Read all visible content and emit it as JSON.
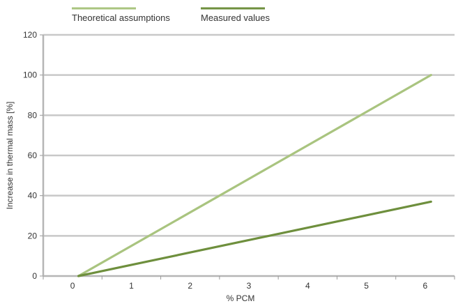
{
  "chart_data": {
    "type": "line",
    "xlabel": "% PCM",
    "ylabel": "Increase in thermal mass [%]",
    "xlim": [
      -0.5,
      6.5
    ],
    "ylim": [
      0,
      120
    ],
    "x_ticks": [
      0,
      1,
      2,
      3,
      4,
      5,
      6
    ],
    "y_ticks": [
      0,
      20,
      40,
      60,
      80,
      100,
      120
    ],
    "grid": "horizontal",
    "legend_position": "top",
    "series": [
      {
        "name": "Theoretical assumptions",
        "color": "#a9c47f",
        "x": [
          0.1,
          6.1
        ],
        "y": [
          0,
          100
        ]
      },
      {
        "name": "Measured values",
        "color": "#6e8f3d",
        "x": [
          0.1,
          6.1
        ],
        "y": [
          0,
          37
        ]
      }
    ]
  }
}
